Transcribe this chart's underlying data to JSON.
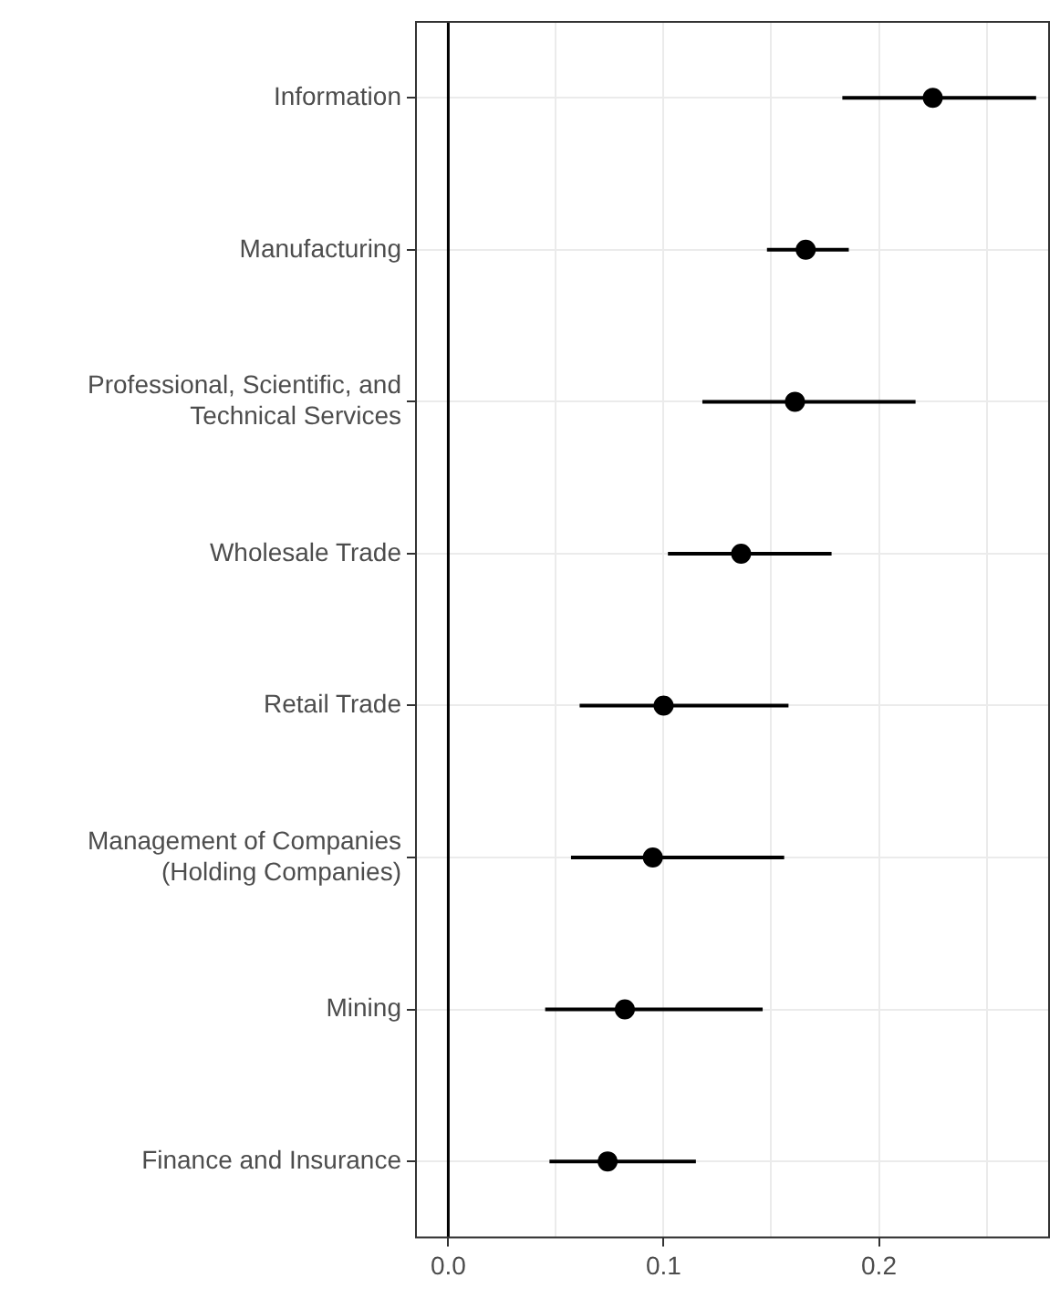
{
  "chart_data": {
    "type": "scatter",
    "orientation": "horizontal",
    "categories": [
      "Information",
      "Manufacturing",
      "Professional, Scientific, and Technical Services",
      "Wholesale Trade",
      "Retail Trade",
      "Management of Companies (Holding Companies)",
      "Mining",
      "Finance and Insurance"
    ],
    "values": [
      0.225,
      0.166,
      0.161,
      0.136,
      0.1,
      0.095,
      0.082,
      0.074
    ],
    "errors": [
      [
        0.183,
        0.273
      ],
      [
        0.148,
        0.186
      ],
      [
        0.118,
        0.217
      ],
      [
        0.102,
        0.178
      ],
      [
        0.061,
        0.158
      ],
      [
        0.057,
        0.156
      ],
      [
        0.045,
        0.146
      ],
      [
        0.047,
        0.115
      ]
    ],
    "color": "#000000",
    "marker": "circle",
    "xlim": [
      -0.015,
      0.279
    ],
    "xticks": [
      {
        "value": 0,
        "label": "0.0"
      },
      0.1,
      0.2,
      {
        "value": 0.05,
        "label": null
      },
      {
        "value": 0.15,
        "label": null
      },
      {
        "value": 0.25,
        "label": null
      }
    ],
    "ref_lines": [
      {
        "axis": "x",
        "value": 0,
        "color": "#000000"
      }
    ],
    "grid": true
  }
}
